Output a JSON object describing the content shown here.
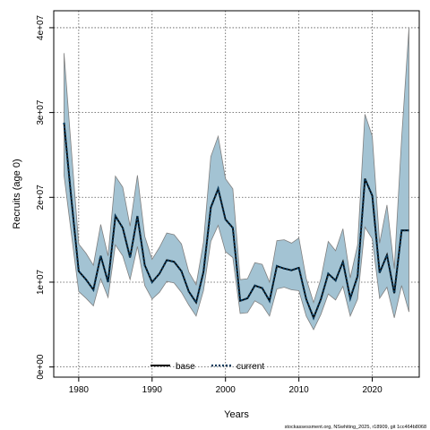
{
  "chart_data": {
    "type": "line",
    "title": "",
    "xlabel": "Years",
    "ylabel": "Recruits (age 0)",
    "xlim": [
      1976.6,
      2026.4
    ],
    "ylim": [
      -1200000,
      42000000
    ],
    "x_ticks": [
      1980,
      1990,
      2000,
      2010,
      2020
    ],
    "x_tick_labels": [
      "1980",
      "1990",
      "2000",
      "2010",
      "2020"
    ],
    "y_ticks": [
      0,
      10000000,
      20000000,
      30000000,
      40000000
    ],
    "y_tick_labels": [
      "0e+00",
      "1e+07",
      "2e+07",
      "3e+07",
      "4e+07"
    ],
    "grid": true,
    "legend_position": "bottom-center",
    "legend": [
      {
        "label": "base",
        "style": "solid",
        "color": "#000000"
      },
      {
        "label": "current",
        "style": "dotted",
        "color": "#0a3a5c"
      }
    ],
    "band_color": "#a3c3d3",
    "band_edge_color": "#808080",
    "x": [
      1978,
      1979,
      1980,
      1981,
      1982,
      1983,
      1984,
      1985,
      1986,
      1987,
      1988,
      1989,
      1990,
      1991,
      1992,
      1993,
      1994,
      1995,
      1996,
      1997,
      1998,
      1999,
      2000,
      2001,
      2002,
      2003,
      2004,
      2005,
      2006,
      2007,
      2008,
      2009,
      2010,
      2011,
      2012,
      2013,
      2014,
      2015,
      2016,
      2017,
      2018,
      2019,
      2020,
      2021,
      2022,
      2023,
      2024,
      2025
    ],
    "series": [
      {
        "name": "base",
        "values": [
          28800000,
          19800000,
          11300000,
          10300000,
          9100000,
          13100000,
          10000000,
          17800000,
          16400000,
          12900000,
          17800000,
          12000000,
          10000000,
          11000000,
          12600000,
          12400000,
          11300000,
          8900000,
          7600000,
          11200000,
          18800000,
          21000000,
          17400000,
          16400000,
          7800000,
          8100000,
          9600000,
          9300000,
          7800000,
          11900000,
          11600000,
          11400000,
          11700000,
          8000000,
          5800000,
          8000000,
          11000000,
          10200000,
          12400000,
          8100000,
          10700000,
          22200000,
          20200000,
          11100000,
          13200000,
          8700000,
          16100000,
          16100000
        ]
      },
      {
        "name": "current",
        "values": [
          28800000,
          19800000,
          11300000,
          10300000,
          9100000,
          13100000,
          10000000,
          17800000,
          16400000,
          12900000,
          17800000,
          12000000,
          10000000,
          11000000,
          12600000,
          12400000,
          11300000,
          8900000,
          7600000,
          11200000,
          18800000,
          21000000,
          17400000,
          16400000,
          7800000,
          8100000,
          9600000,
          9300000,
          7800000,
          11900000,
          11600000,
          11400000,
          11700000,
          8000000,
          5800000,
          8000000,
          11000000,
          10200000,
          12400000,
          8100000,
          10700000,
          22200000,
          20200000,
          11100000,
          13200000,
          8700000,
          16100000,
          16100000
        ]
      }
    ],
    "upper": [
      37000000,
      25600000,
      14500000,
      13400000,
      12000000,
      16800000,
      13100000,
      22500000,
      21200000,
      16600000,
      22600000,
      15400000,
      12700000,
      14100000,
      15800000,
      15600000,
      14500000,
      11200000,
      9700000,
      14700000,
      24800000,
      27200000,
      22200000,
      21000000,
      10300000,
      10400000,
      12300000,
      12100000,
      10000000,
      14900000,
      15000000,
      14600000,
      15200000,
      10400000,
      7600000,
      10400000,
      14800000,
      13700000,
      16300000,
      10500000,
      14400000,
      29800000,
      27200000,
      14600000,
      19100000,
      11600000,
      27000000,
      40000000
    ],
    "lower": [
      22600000,
      15700000,
      8900000,
      8100000,
      7200000,
      10400000,
      8200000,
      14400000,
      13100000,
      10300000,
      14200000,
      9600000,
      8000000,
      8800000,
      10100000,
      9900000,
      8800000,
      7300000,
      6000000,
      9000000,
      14800000,
      16700000,
      13600000,
      12900000,
      6300000,
      6400000,
      7800000,
      7300000,
      6000000,
      9200000,
      9400000,
      9100000,
      9000000,
      6000000,
      4400000,
      6200000,
      8600000,
      7900000,
      9500000,
      6000000,
      8000000,
      16500000,
      15100000,
      8100000,
      9400000,
      5800000,
      9600000,
      6500000
    ]
  },
  "footnote": "stockassessment.org, NSwhiting_2025, r18909, git 1cc464b8068"
}
